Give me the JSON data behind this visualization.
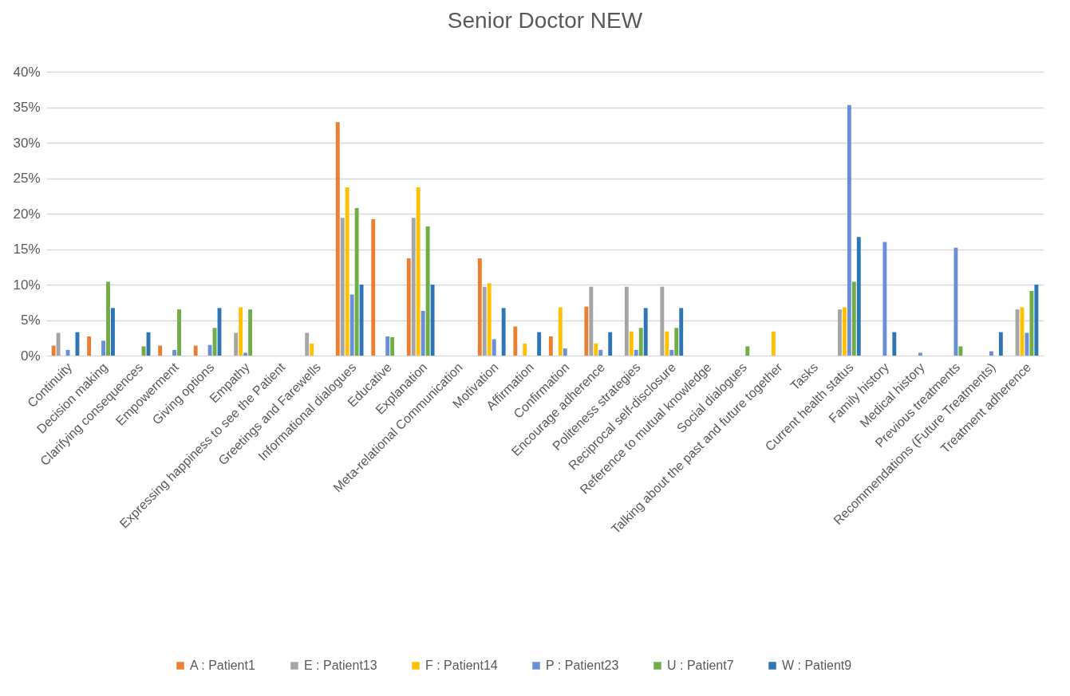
{
  "chart_data": {
    "type": "bar",
    "title": "Senior Doctor NEW",
    "categories": [
      "Continuity",
      "Decision making",
      "Clarifying consequences",
      "Empowerment",
      "Giving options",
      "Empathy",
      "Expressing happiness to see the Patient",
      "Greetings and Farewells",
      "Informational dialogues",
      "Educative",
      "Explanation",
      "Meta-relational Communication",
      "Motivation",
      "Affirmation",
      "Confirmation",
      "Encourage adherence",
      "Politeness strategies",
      "Reciprocal self-disclosure",
      "Reference to mutual knowledge",
      "Social dialogues",
      "Talking about the past and future together",
      "Tasks",
      "Current health status",
      "Family history",
      "Medical history",
      "Previous treatments",
      "Recommendations (Future Treatments)",
      "Treatment adherence"
    ],
    "series": [
      {
        "name": "A : Patient1",
        "color": "#ed7d31",
        "values": [
          1.4,
          2.7,
          0,
          1.4,
          1.4,
          0,
          0,
          0,
          32.9,
          19.2,
          13.7,
          0,
          13.7,
          4.1,
          2.7,
          6.9,
          0,
          0,
          0,
          0,
          0,
          0,
          0,
          0,
          0,
          0,
          0,
          0
        ]
      },
      {
        "name": "E : Patient13",
        "color": "#a5a5a5",
        "values": [
          3.2,
          0,
          0,
          0,
          0,
          3.2,
          0,
          3.2,
          19.4,
          0,
          19.4,
          0,
          9.7,
          0,
          0,
          9.7,
          9.7,
          9.7,
          0,
          0,
          0,
          0,
          6.5,
          0,
          0,
          0,
          0,
          6.5
        ]
      },
      {
        "name": "F : Patient14",
        "color": "#ffc000",
        "values": [
          0,
          0,
          0,
          0,
          0,
          6.8,
          0,
          1.7,
          23.7,
          0,
          23.7,
          0,
          10.2,
          1.7,
          6.8,
          1.7,
          3.4,
          3.4,
          0,
          0,
          3.4,
          0,
          6.8,
          0,
          0,
          0,
          0,
          6.8
        ]
      },
      {
        "name": "P : Patient23",
        "color": "#6a8fd5",
        "values": [
          0.8,
          2.1,
          0,
          0.8,
          1.5,
          0.4,
          0,
          0,
          8.6,
          2.7,
          6.3,
          0,
          2.3,
          0,
          1.0,
          0.8,
          0.8,
          0.8,
          0,
          0,
          0,
          0,
          35.3,
          16.0,
          0.4,
          15.2,
          0.6,
          3.2
        ]
      },
      {
        "name": "U : Patient7",
        "color": "#70ad47",
        "values": [
          0,
          10.4,
          1.3,
          6.5,
          3.9,
          6.5,
          0,
          0,
          20.8,
          2.6,
          18.2,
          0,
          0,
          0,
          0,
          0,
          3.9,
          3.9,
          0,
          1.3,
          0,
          0,
          10.4,
          0,
          0,
          1.3,
          0,
          9.1
        ]
      },
      {
        "name": "W : Patient9",
        "color": "#2e75b6",
        "values": [
          3.3,
          6.7,
          3.3,
          0,
          6.7,
          0,
          0,
          0,
          10.0,
          0,
          10.0,
          0,
          6.7,
          3.3,
          0,
          3.3,
          6.7,
          6.7,
          0,
          0,
          0,
          0,
          16.7,
          3.3,
          0,
          0,
          3.3,
          10.0
        ]
      }
    ],
    "ylim": [
      0,
      40
    ],
    "yticks": [
      {
        "value": 0,
        "label": "0%"
      },
      {
        "value": 5,
        "label": "5%"
      },
      {
        "value": 10,
        "label": "10%"
      },
      {
        "value": 15,
        "label": "15%"
      },
      {
        "value": 20,
        "label": "20%"
      },
      {
        "value": 25,
        "label": "25%"
      },
      {
        "value": 30,
        "label": "30%"
      },
      {
        "value": 35,
        "label": "35%"
      },
      {
        "value": 40,
        "label": "40%"
      }
    ],
    "grid": "y",
    "legend": "bottom"
  }
}
